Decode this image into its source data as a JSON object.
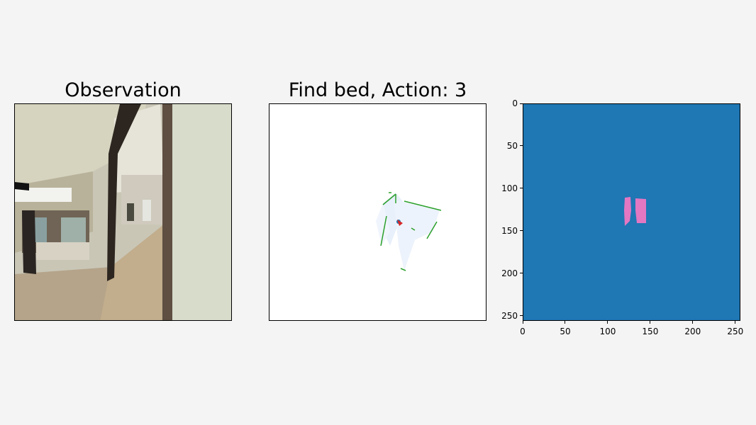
{
  "panels": {
    "observation": {
      "title": "Observation",
      "icon": "room-observation-image"
    },
    "map": {
      "title": "Find bed, Action: 3",
      "icon": "semantic-map-image"
    },
    "segmentation": {
      "icon": "segmentation-mask-image"
    }
  },
  "colors": {
    "figure_bg": "#f4f4f4",
    "mask_bg": "#1f77b4",
    "mask_object": "#e377c2",
    "map_obstacle": "#2ca02c",
    "map_explored": "#e8f0fb",
    "agent_marker": "#d62728",
    "agent_goal": "#1f77b4"
  },
  "axes": {
    "x_ticks": [
      "0",
      "50",
      "100",
      "150",
      "200",
      "250"
    ],
    "y_ticks": [
      "0",
      "50",
      "100",
      "150",
      "200",
      "250"
    ],
    "xlim": [
      0,
      256
    ],
    "ylim": [
      256,
      0
    ]
  }
}
